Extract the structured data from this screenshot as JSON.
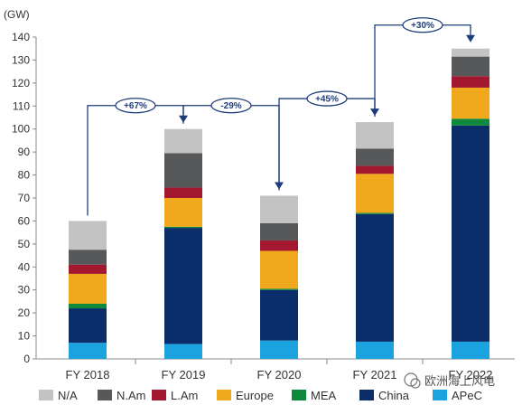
{
  "chart_data": {
    "type": "bar",
    "stacked": true,
    "unit_label": "(GW)",
    "categories": [
      "FY 2018",
      "FY 2019",
      "FY 2020",
      "FY 2021",
      "FY 2022"
    ],
    "ylim": [
      0,
      140
    ],
    "yticks": [
      0,
      10,
      20,
      30,
      40,
      50,
      60,
      70,
      80,
      90,
      100,
      110,
      120,
      130,
      140
    ],
    "grid": false,
    "legend_position": "bottom",
    "series": [
      {
        "name": "APeC",
        "color": "#1aa3df",
        "values": [
          7,
          6.5,
          8,
          7.5,
          7.5
        ]
      },
      {
        "name": "China",
        "color": "#0b2e6b",
        "values": [
          15,
          50.5,
          22,
          55.5,
          94
        ]
      },
      {
        "name": "MEA",
        "color": "#0f8a3c",
        "values": [
          2,
          0.5,
          0.5,
          0.5,
          3
        ]
      },
      {
        "name": "Europe",
        "color": "#f0a81c",
        "values": [
          13,
          12.5,
          16.5,
          17,
          13.5
        ]
      },
      {
        "name": "L.Am",
        "color": "#a3172f",
        "values": [
          4,
          4.5,
          4.5,
          3.5,
          5
        ]
      },
      {
        "name": "N.Am",
        "color": "#57585a",
        "values": [
          6.5,
          15,
          7.5,
          7.5,
          8.5
        ]
      },
      {
        "name": "N/A",
        "color": "#c3c3c3",
        "values": [
          12.5,
          10.5,
          12,
          11.5,
          3.5
        ]
      }
    ],
    "legend_order": [
      "N/A",
      "N.Am",
      "L.Am",
      "Europe",
      "MEA",
      "China",
      "APeC"
    ],
    "annotations": [
      {
        "label": "+67%",
        "from": "FY 2018",
        "to": "FY 2019"
      },
      {
        "label": "-29%",
        "from": "FY 2019",
        "to": "FY 2020"
      },
      {
        "label": "+45%",
        "from": "FY 2020",
        "to": "FY 2021"
      },
      {
        "label": "+30%",
        "from": "FY 2021",
        "to": "FY 2022"
      }
    ],
    "line_color": "#1f3d7a"
  },
  "watermark": {
    "text": "欧洲海上风电"
  }
}
